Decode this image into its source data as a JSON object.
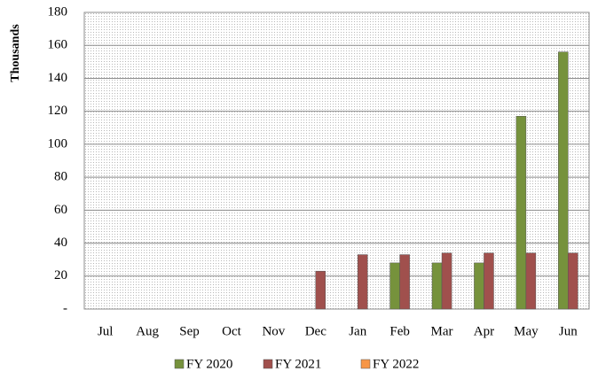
{
  "chart_data": {
    "type": "bar",
    "y_label": "Thousands",
    "categories": [
      "Jul",
      "Aug",
      "Sep",
      "Oct",
      "Nov",
      "Dec",
      "Jan",
      "Feb",
      "Mar",
      "Apr",
      "May",
      "Jun"
    ],
    "series": [
      {
        "name": "FY 2020",
        "color": "#76923c",
        "values": [
          null,
          null,
          null,
          null,
          null,
          null,
          null,
          28,
          28,
          28,
          117,
          156
        ]
      },
      {
        "name": "FY 2021",
        "color": "#a0504d",
        "values": [
          null,
          null,
          null,
          null,
          null,
          23,
          33,
          33,
          34,
          34,
          34,
          34
        ]
      },
      {
        "name": "FY 2022",
        "color": "#f79646",
        "values": [
          null,
          null,
          null,
          null,
          null,
          null,
          null,
          null,
          null,
          null,
          null,
          null
        ]
      }
    ],
    "ylim": [
      0,
      180
    ],
    "yticks": [
      {
        "value": 0,
        "label": "-"
      },
      20,
      40,
      60,
      80,
      100,
      120,
      140,
      160,
      180
    ],
    "grid": true,
    "legend": "bottom"
  }
}
